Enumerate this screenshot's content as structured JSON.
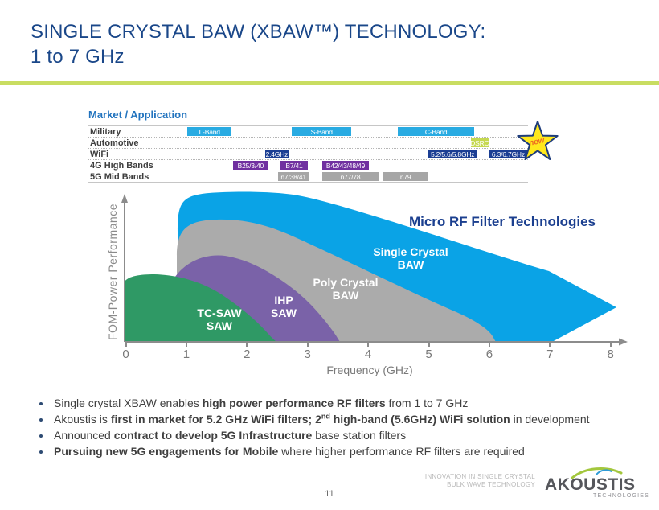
{
  "slide": {
    "title_line1": "SINGLE CRYSTAL BAW (XBAW™) TECHNOLOGY:",
    "title_line2": "1 to 7 GHz",
    "page_number": "11"
  },
  "colors": {
    "divider_green": "#C9DD61",
    "title_blue": "#1A4789",
    "chart_title_navy": "#1B3F8F",
    "band_lightblue": "#29ABE2",
    "band_navy": "#1B3E93",
    "band_purple": "#7030A0",
    "band_gray": "#A6A6A6",
    "band_dsrc_green": "#C5D850",
    "star_yellow": "#FFE81C",
    "star_border_navy": "#1E3C7B",
    "star_new_orange": "#ED6B21",
    "logo_swoosh_green": "#A3C73D",
    "logo_accent_blue": "#2E9BD6"
  },
  "market_table": {
    "heading": "Market / Application",
    "rows": [
      {
        "label": "Military",
        "chips": [
          {
            "label": "L-Band",
            "left": 22.5,
            "width": 10.1,
            "bg": "#29ABE2"
          },
          {
            "label": "S-Band",
            "left": 46.3,
            "width": 13.5,
            "bg": "#29ABE2"
          },
          {
            "label": "C-Band",
            "left": 70.4,
            "width": 17.4,
            "bg": "#29ABE2"
          }
        ]
      },
      {
        "label": "Automotive",
        "chips": [
          {
            "label": "DSRC",
            "left": 87.0,
            "width": 4.0,
            "bg": "#C5D850"
          }
        ]
      },
      {
        "label": "WiFi",
        "chips": [
          {
            "label": "2.4GHz",
            "left": 40.2,
            "width": 5.3,
            "bg": "#1B3E93"
          },
          {
            "label": "5.2/5.6/5.8GHz",
            "left": 77.2,
            "width": 11.3,
            "bg": "#1B3E93"
          },
          {
            "label": "6.3/6.7GHz",
            "left": 91.0,
            "width": 9.0,
            "bg": "#1B3E93"
          }
        ]
      },
      {
        "label": "4G High Bands",
        "chips": [
          {
            "label": "B25/3/40",
            "left": 32.9,
            "width": 8.0,
            "bg": "#7030A0"
          },
          {
            "label": "B7/41",
            "left": 43.7,
            "width": 6.2,
            "bg": "#7030A0"
          },
          {
            "label": "B42/43/48/49",
            "left": 53.2,
            "width": 10.6,
            "bg": "#7030A0"
          }
        ]
      },
      {
        "label": "5G Mid Bands",
        "chips": [
          {
            "label": "n7/38/41",
            "left": 43.1,
            "width": 7.1,
            "bg": "#A6A6A6"
          },
          {
            "label": "n77/78",
            "left": 53.2,
            "width": 12.8,
            "bg": "#A6A6A6"
          },
          {
            "label": "n79",
            "left": 67.1,
            "width": 10.1,
            "bg": "#A6A6A6"
          }
        ]
      }
    ],
    "star_label": "new"
  },
  "chart_data": {
    "type": "area",
    "title": "Micro RF Filter Technologies",
    "xlabel": "Frequency (GHz)",
    "ylabel": "FOM-Power Performance",
    "x_ticks": [
      0,
      1,
      2,
      3,
      4,
      5,
      6,
      7,
      8
    ],
    "xlim": [
      0,
      8.3
    ],
    "grid": false,
    "legend": "labels drawn inside areas",
    "note": "Qualitative overlapping performance envelopes; y-axis unlabeled (relative FOM-power performance, 0-1). Single Crystal BAW area ends in a right-pointing arrowhead past 8 GHz.",
    "series": [
      {
        "name": "TC-SAW SAW",
        "label_lines": [
          "TC-SAW",
          "SAW"
        ],
        "color": "#2F9965",
        "x_range_ghz": [
          0,
          2.5
        ],
        "envelope": [
          [
            0,
            0.44
          ],
          [
            0.5,
            0.45
          ],
          [
            1,
            0.4
          ],
          [
            1.5,
            0.31
          ],
          [
            2,
            0.19
          ],
          [
            2.5,
            0
          ]
        ]
      },
      {
        "name": "IHP SAW",
        "label_lines": [
          "IHP",
          "SAW"
        ],
        "color": "#7A62A8",
        "x_range_ghz": [
          0.55,
          3.5
        ],
        "envelope": [
          [
            0.55,
            0
          ],
          [
            1,
            0.5
          ],
          [
            1.5,
            0.6
          ],
          [
            2,
            0.55
          ],
          [
            2.5,
            0.4
          ],
          [
            3,
            0.24
          ],
          [
            3.5,
            0
          ]
        ]
      },
      {
        "name": "Poly Crystal BAW",
        "label_lines": [
          "Poly Crystal",
          "BAW"
        ],
        "color": "#ABABAB",
        "x_range_ghz": [
          0.95,
          6.1
        ],
        "envelope": [
          [
            0.95,
            0.2
          ],
          [
            1.3,
            0.8
          ],
          [
            2,
            0.83
          ],
          [
            3,
            0.66
          ],
          [
            4,
            0.47
          ],
          [
            5,
            0.3
          ],
          [
            5.7,
            0.16
          ],
          [
            6.1,
            0
          ]
        ]
      },
      {
        "name": "Single Crystal BAW",
        "label_lines": [
          "Single Crystal",
          "BAW"
        ],
        "color": "#0AA3E6",
        "x_range_ghz": [
          0.85,
          8.15
        ],
        "envelope": [
          [
            0.85,
            0.45
          ],
          [
            1.0,
            0.95
          ],
          [
            1.5,
            1.0
          ],
          [
            2.2,
            0.98
          ],
          [
            4,
            0.7
          ],
          [
            6.1,
            0.47
          ],
          [
            7.1,
            0.35
          ],
          [
            8.15,
            0.23
          ]
        ],
        "arrowhead_tip_ghz": 8.15
      }
    ]
  },
  "bullets": [
    {
      "segments": [
        {
          "text": "Single crystal XBAW enables "
        },
        {
          "text": "high power performance RF filters",
          "bold": true
        },
        {
          "text": " from 1 to 7 GHz"
        }
      ]
    },
    {
      "segments": [
        {
          "text": "Akoustis is "
        },
        {
          "text": "first in market for 5.2 GHz WiFi filters; 2",
          "bold": true
        },
        {
          "text": "nd",
          "bold": true,
          "sup": true
        },
        {
          "text": " high-band (5.6GHz) WiFi solution",
          "bold": true
        },
        {
          "text": " in development"
        }
      ]
    },
    {
      "segments": [
        {
          "text": "Announced "
        },
        {
          "text": "contract to develop 5G Infrastructure",
          "bold": true
        },
        {
          "text": " base station filters"
        }
      ]
    },
    {
      "segments": [
        {
          "text": "Pursuing new 5G engagements for Mobile",
          "bold": true
        },
        {
          "text": " where higher performance RF filters are required"
        }
      ]
    }
  ],
  "footer": {
    "tagline_line1": "INNOVATION IN SINGLE CRYSTAL",
    "tagline_line2": "BULK WAVE TECHNOLOGY",
    "logo_text": "AKOUSTIS",
    "logo_subtext": "TECHNOLOGIES"
  }
}
